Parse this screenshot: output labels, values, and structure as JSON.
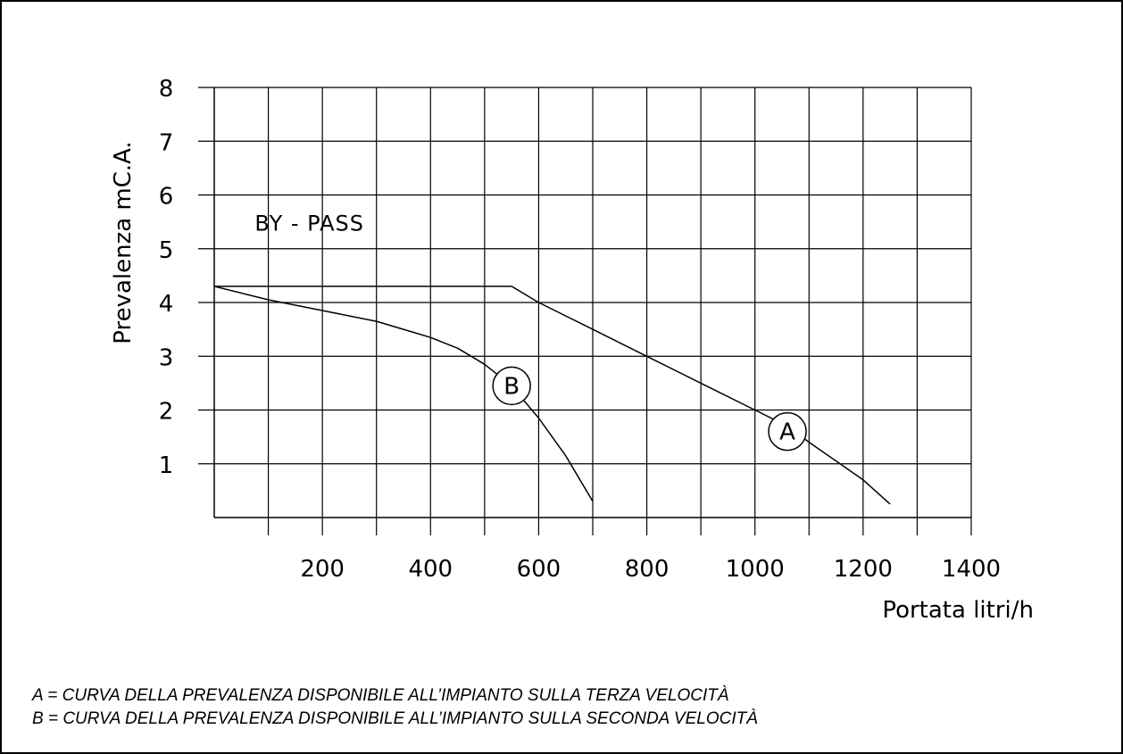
{
  "chart_data": {
    "type": "line",
    "ylabel": "Prevalenza mC.A.",
    "xlabel": "Portata litri/h",
    "xlim": [
      0,
      1400
    ],
    "ylim": [
      0,
      8
    ],
    "x_grid_step": 100,
    "y_grid_step": 1,
    "x_ticks": [
      200,
      400,
      600,
      800,
      1000,
      1200,
      1400
    ],
    "y_ticks": [
      1,
      2,
      3,
      4,
      5,
      6,
      7,
      8
    ],
    "grid": true,
    "series": [
      {
        "name": "A",
        "x": [
          0,
          550,
          600,
          700,
          800,
          900,
          1000,
          1060,
          1100,
          1200,
          1250
        ],
        "y": [
          4.3,
          4.3,
          4.0,
          3.5,
          3.0,
          2.5,
          2.0,
          1.7,
          1.4,
          0.7,
          0.25
        ],
        "label_at": [
          1060,
          1.6
        ]
      },
      {
        "name": "B",
        "x": [
          0,
          100,
          200,
          300,
          350,
          400,
          450,
          500,
          550,
          600,
          650,
          700
        ],
        "y": [
          4.3,
          4.05,
          3.85,
          3.65,
          3.5,
          3.35,
          3.15,
          2.85,
          2.45,
          1.85,
          1.15,
          0.3
        ],
        "label_at": [
          550,
          2.45
        ]
      }
    ],
    "annotations": [
      {
        "text": "BY - PASS",
        "x": 75,
        "y": 5.5
      }
    ]
  },
  "notes": [
    "A = CURVA DELLA PREVALENZA DISPONIBILE ALL’IMPIANTO SULLA TERZA VELOCITÀ",
    "B = CURVA DELLA PREVALENZA DISPONIBILE ALL’IMPIANTO SULLA SECONDA VELOCITÀ"
  ]
}
